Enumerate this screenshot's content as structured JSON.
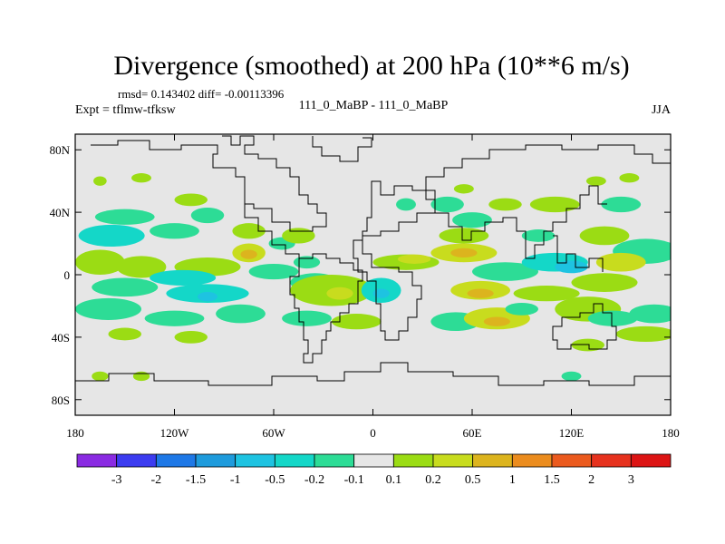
{
  "chart_data": {
    "type": "heatmap",
    "title": "Divergence (smoothed) at 200 hPa (10**6 m/s)",
    "stats": "rmsd= 0.143402 diff= -0.00113396",
    "experiment": "Expt = tflmw-tfksw",
    "subtitle": "111_0_MaBP - 111_0_MaBP",
    "season": "JJA",
    "x_ticks": [
      "180",
      "120W",
      "60W",
      "0",
      "60E",
      "120E",
      "180"
    ],
    "x_tick_values": [
      -180,
      -120,
      -60,
      0,
      60,
      120,
      180
    ],
    "y_ticks": [
      "80N",
      "40N",
      "0",
      "40S",
      "80S"
    ],
    "y_tick_values": [
      80,
      40,
      0,
      -40,
      -80
    ],
    "xlim": [
      -180,
      180
    ],
    "ylim": [
      -90,
      90
    ],
    "colorbar": {
      "labels": [
        "-3",
        "-2",
        "-1.5",
        "-1",
        "-0.5",
        "-0.2",
        "-0.1",
        "0.1",
        "0.2",
        "0.5",
        "1",
        "1.5",
        "2",
        "3"
      ],
      "colors": [
        "#8a2be2",
        "#3c3cf0",
        "#1e78e6",
        "#1e9bdc",
        "#1ec3e1",
        "#14d7c8",
        "#2ddc96",
        "#e6e6e6",
        "#9bdc14",
        "#c8dc1e",
        "#dcb41e",
        "#eb8c1e",
        "#eb5a1e",
        "#e6321e",
        "#dc1414"
      ]
    },
    "blobs": [
      {
        "lon": -165,
        "lat": 60,
        "rx": 4,
        "ry": 3,
        "level": 8
      },
      {
        "lon": -140,
        "lat": 62,
        "rx": 6,
        "ry": 3,
        "level": 8
      },
      {
        "lon": -110,
        "lat": 48,
        "rx": 10,
        "ry": 4,
        "level": 8
      },
      {
        "lon": -150,
        "lat": 37,
        "rx": 18,
        "ry": 5,
        "level": 6
      },
      {
        "lon": -100,
        "lat": 38,
        "rx": 10,
        "ry": 5,
        "level": 6
      },
      {
        "lon": -158,
        "lat": 25,
        "rx": 20,
        "ry": 7,
        "level": 5
      },
      {
        "lon": -120,
        "lat": 28,
        "rx": 15,
        "ry": 5,
        "level": 6
      },
      {
        "lon": -75,
        "lat": 28,
        "rx": 10,
        "ry": 5,
        "level": 8
      },
      {
        "lon": -75,
        "lat": 14,
        "rx": 10,
        "ry": 6,
        "level": 9
      },
      {
        "lon": -75,
        "lat": 13,
        "rx": 5,
        "ry": 3,
        "level": 10
      },
      {
        "lon": -55,
        "lat": 20,
        "rx": 8,
        "ry": 4,
        "level": 6
      },
      {
        "lon": -45,
        "lat": 25,
        "rx": 10,
        "ry": 5,
        "level": 8
      },
      {
        "lon": -165,
        "lat": 8,
        "rx": 15,
        "ry": 8,
        "level": 8
      },
      {
        "lon": -140,
        "lat": 5,
        "rx": 15,
        "ry": 7,
        "level": 8
      },
      {
        "lon": -100,
        "lat": 5,
        "rx": 20,
        "ry": 6,
        "level": 8
      },
      {
        "lon": -60,
        "lat": 2,
        "rx": 15,
        "ry": 5,
        "level": 6
      },
      {
        "lon": -115,
        "lat": -2,
        "rx": 20,
        "ry": 5,
        "level": 5
      },
      {
        "lon": -150,
        "lat": -8,
        "rx": 20,
        "ry": 6,
        "level": 6
      },
      {
        "lon": -100,
        "lat": -12,
        "rx": 25,
        "ry": 6,
        "level": 5
      },
      {
        "lon": -100,
        "lat": -14,
        "rx": 6,
        "ry": 3,
        "level": 4
      },
      {
        "lon": -160,
        "lat": -22,
        "rx": 20,
        "ry": 7,
        "level": 6
      },
      {
        "lon": -120,
        "lat": -28,
        "rx": 18,
        "ry": 5,
        "level": 6
      },
      {
        "lon": -80,
        "lat": -25,
        "rx": 15,
        "ry": 6,
        "level": 6
      },
      {
        "lon": -150,
        "lat": -38,
        "rx": 10,
        "ry": 4,
        "level": 8
      },
      {
        "lon": -110,
        "lat": -40,
        "rx": 10,
        "ry": 4,
        "level": 8
      },
      {
        "lon": -165,
        "lat": -65,
        "rx": 5,
        "ry": 3,
        "level": 8
      },
      {
        "lon": -140,
        "lat": -65,
        "rx": 5,
        "ry": 3,
        "level": 8
      },
      {
        "lon": -40,
        "lat": 8,
        "rx": 8,
        "ry": 4,
        "level": 6
      },
      {
        "lon": -35,
        "lat": -5,
        "rx": 15,
        "ry": 6,
        "level": 6
      },
      {
        "lon": -25,
        "lat": -10,
        "rx": 25,
        "ry": 10,
        "level": 8
      },
      {
        "lon": -20,
        "lat": -12,
        "rx": 8,
        "ry": 4,
        "level": 9
      },
      {
        "lon": -40,
        "lat": -28,
        "rx": 15,
        "ry": 5,
        "level": 6
      },
      {
        "lon": -10,
        "lat": -30,
        "rx": 15,
        "ry": 5,
        "level": 8
      },
      {
        "lon": 5,
        "lat": -10,
        "rx": 12,
        "ry": 8,
        "level": 5
      },
      {
        "lon": 5,
        "lat": -12,
        "rx": 5,
        "ry": 3,
        "level": 4
      },
      {
        "lon": 20,
        "lat": 8,
        "rx": 20,
        "ry": 5,
        "level": 8
      },
      {
        "lon": 25,
        "lat": 10,
        "rx": 10,
        "ry": 3,
        "level": 9
      },
      {
        "lon": 20,
        "lat": 45,
        "rx": 6,
        "ry": 4,
        "level": 6
      },
      {
        "lon": 45,
        "lat": 45,
        "rx": 10,
        "ry": 5,
        "level": 6
      },
      {
        "lon": 80,
        "lat": 45,
        "rx": 10,
        "ry": 4,
        "level": 8
      },
      {
        "lon": 55,
        "lat": 55,
        "rx": 6,
        "ry": 3,
        "level": 8
      },
      {
        "lon": 60,
        "lat": 35,
        "rx": 12,
        "ry": 5,
        "level": 6
      },
      {
        "lon": 55,
        "lat": 25,
        "rx": 15,
        "ry": 5,
        "level": 8
      },
      {
        "lon": 55,
        "lat": 14,
        "rx": 20,
        "ry": 6,
        "level": 9
      },
      {
        "lon": 55,
        "lat": 14,
        "rx": 8,
        "ry": 3,
        "level": 10
      },
      {
        "lon": 80,
        "lat": 2,
        "rx": 20,
        "ry": 6,
        "level": 6
      },
      {
        "lon": 65,
        "lat": -10,
        "rx": 18,
        "ry": 6,
        "level": 9
      },
      {
        "lon": 65,
        "lat": -12,
        "rx": 8,
        "ry": 3,
        "level": 10
      },
      {
        "lon": 50,
        "lat": -30,
        "rx": 15,
        "ry": 6,
        "level": 6
      },
      {
        "lon": 75,
        "lat": -28,
        "rx": 20,
        "ry": 7,
        "level": 9
      },
      {
        "lon": 75,
        "lat": -30,
        "rx": 8,
        "ry": 3,
        "level": 10
      },
      {
        "lon": 90,
        "lat": -22,
        "rx": 10,
        "ry": 4,
        "level": 6
      },
      {
        "lon": 105,
        "lat": -12,
        "rx": 20,
        "ry": 5,
        "level": 8
      },
      {
        "lon": 110,
        "lat": 8,
        "rx": 20,
        "ry": 6,
        "level": 5
      },
      {
        "lon": 120,
        "lat": 5,
        "rx": 10,
        "ry": 4,
        "level": 4
      },
      {
        "lon": 110,
        "lat": 45,
        "rx": 15,
        "ry": 5,
        "level": 8
      },
      {
        "lon": 100,
        "lat": 25,
        "rx": 10,
        "ry": 4,
        "level": 6
      },
      {
        "lon": 140,
        "lat": 25,
        "rx": 15,
        "ry": 6,
        "level": 8
      },
      {
        "lon": 150,
        "lat": 45,
        "rx": 12,
        "ry": 5,
        "level": 6
      },
      {
        "lon": 135,
        "lat": 60,
        "rx": 6,
        "ry": 3,
        "level": 8
      },
      {
        "lon": 155,
        "lat": 62,
        "rx": 6,
        "ry": 3,
        "level": 8
      },
      {
        "lon": 165,
        "lat": 15,
        "rx": 20,
        "ry": 8,
        "level": 6
      },
      {
        "lon": 150,
        "lat": 8,
        "rx": 15,
        "ry": 6,
        "level": 9
      },
      {
        "lon": 140,
        "lat": -5,
        "rx": 20,
        "ry": 6,
        "level": 8
      },
      {
        "lon": 130,
        "lat": -22,
        "rx": 20,
        "ry": 8,
        "level": 8
      },
      {
        "lon": 145,
        "lat": -28,
        "rx": 15,
        "ry": 5,
        "level": 6
      },
      {
        "lon": 170,
        "lat": -25,
        "rx": 15,
        "ry": 6,
        "level": 6
      },
      {
        "lon": 165,
        "lat": -38,
        "rx": 18,
        "ry": 5,
        "level": 8
      },
      {
        "lon": 130,
        "lat": -45,
        "rx": 10,
        "ry": 4,
        "level": 8
      },
      {
        "lon": 120,
        "lat": -65,
        "rx": 6,
        "ry": 3,
        "level": 6
      }
    ]
  }
}
